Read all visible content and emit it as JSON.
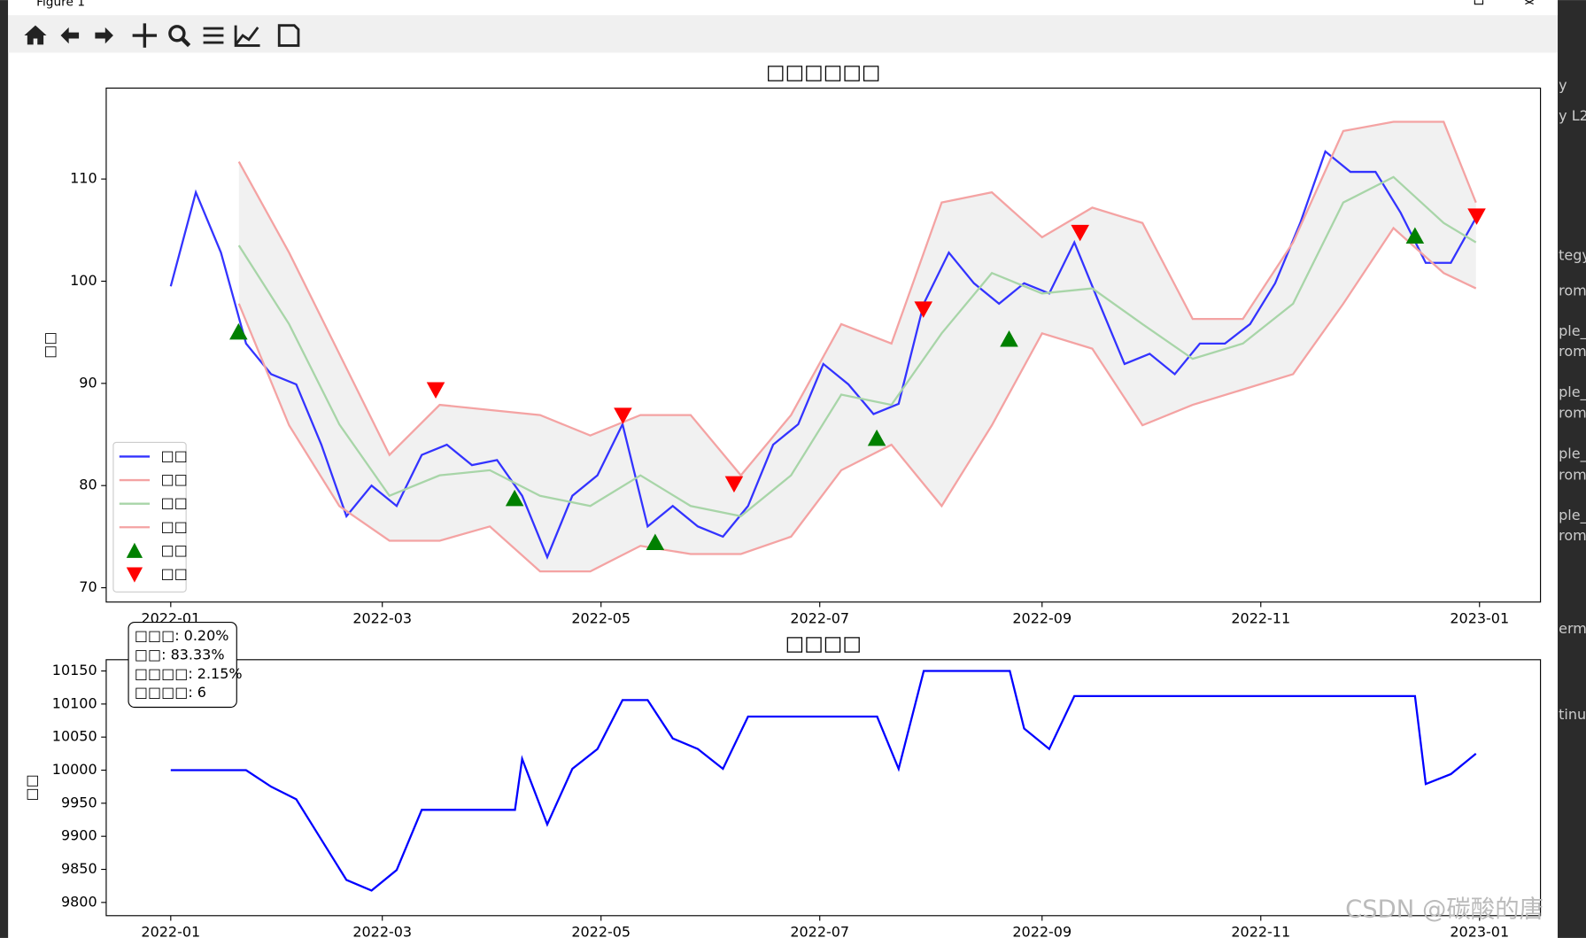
{
  "window": {
    "title": "Figure 1"
  },
  "side_text": [
    "y",
    "y L2",
    "tegy",
    "rom",
    "ple_",
    "rom",
    "ple_",
    "rom",
    "ple_",
    "rom",
    "ple_",
    "rom",
    "ermin",
    "tinue"
  ],
  "watermark": "CSDN @碳酸的唐",
  "chart_data": [
    {
      "type": "line",
      "title": "□□□□□□",
      "ylabel": "□□",
      "legend": "lower left",
      "grid": false,
      "xlim": [
        -18,
        382
      ],
      "ylim": [
        68.6,
        118.9
      ],
      "xticks": [
        {
          "value": 0,
          "label": "2022-01"
        },
        {
          "value": 59,
          "label": "2022-03"
        },
        {
          "value": 120,
          "label": "2022-05"
        },
        {
          "value": 181,
          "label": "2022-07"
        },
        {
          "value": 243,
          "label": "2022-09"
        },
        {
          "value": 304,
          "label": "2022-11"
        },
        {
          "value": 365,
          "label": "2023-01"
        }
      ],
      "yticks": [
        70,
        80,
        90,
        100,
        110
      ],
      "series": [
        {
          "name": "□□",
          "color": "#3333ff",
          "x": [
            0,
            7,
            14,
            21,
            28,
            35,
            42,
            49,
            56,
            63,
            70,
            77,
            84,
            91,
            98,
            105,
            112,
            119,
            126,
            133,
            140,
            147,
            154,
            161,
            168,
            175,
            182,
            189,
            196,
            203,
            210,
            217,
            224,
            231,
            238,
            245,
            252,
            259,
            266,
            273,
            280,
            287,
            294,
            301,
            308,
            315,
            322,
            329,
            336,
            343,
            350,
            357,
            364
          ],
          "values": [
            99.5,
            108.7,
            102.8,
            93.9,
            90.9,
            89.9,
            84,
            77,
            80,
            78,
            83,
            84,
            82,
            82.5,
            79,
            73,
            79,
            81,
            86,
            76,
            78,
            76,
            75,
            78,
            84,
            86,
            91.9,
            89.9,
            87,
            88,
            97.8,
            102.8,
            99.8,
            97.8,
            99.8,
            98.8,
            103.8,
            97.8,
            91.9,
            92.9,
            90.9,
            93.9,
            93.9,
            95.8,
            99.8,
            105.7,
            112.7,
            110.7,
            110.7,
            106.7,
            101.8,
            101.8,
            106.2
          ]
        },
        {
          "name": "□□",
          "color": "#f4a3a3",
          "x": [
            19,
            33,
            47,
            61,
            75,
            89,
            103,
            117,
            131,
            145,
            159,
            173,
            187,
            201,
            215,
            229,
            243,
            257,
            271,
            285,
            299,
            313,
            327,
            341,
            355,
            364
          ],
          "values": [
            111.7,
            102.8,
            92.9,
            83,
            87.9,
            87.4,
            86.9,
            84.9,
            86.9,
            86.9,
            81,
            86.9,
            95.8,
            93.9,
            107.7,
            108.7,
            104.3,
            107.2,
            105.7,
            96.3,
            96.3,
            103.8,
            114.7,
            115.6,
            115.6,
            107.7
          ]
        },
        {
          "name": "□□",
          "color": "#a8d5a8",
          "x": [
            19,
            33,
            47,
            61,
            75,
            89,
            103,
            117,
            131,
            145,
            159,
            173,
            187,
            201,
            215,
            229,
            243,
            257,
            271,
            285,
            299,
            313,
            327,
            341,
            355,
            364
          ],
          "values": [
            103.5,
            95.8,
            86,
            79,
            81,
            81.5,
            79,
            78,
            81,
            78,
            77,
            81,
            88.9,
            87.9,
            94.9,
            100.8,
            98.8,
            99.3,
            95.8,
            92.4,
            93.9,
            97.8,
            107.7,
            110.2,
            105.7,
            103.8
          ]
        },
        {
          "name": "□□",
          "color": "#f4a3a3",
          "x": [
            19,
            33,
            47,
            61,
            75,
            89,
            103,
            117,
            131,
            145,
            159,
            173,
            187,
            201,
            215,
            229,
            243,
            257,
            271,
            285,
            299,
            313,
            327,
            341,
            355,
            364
          ],
          "values": [
            97.8,
            85.9,
            78,
            74.6,
            74.6,
            76,
            71.6,
            71.6,
            74.1,
            73.3,
            73.3,
            75,
            81.5,
            84,
            78,
            85.9,
            94.9,
            93.4,
            85.9,
            87.9,
            89.4,
            90.9,
            97.8,
            105.2,
            100.8,
            99.3
          ]
        },
        {
          "name": "□□",
          "type": "scatter",
          "marker": "^",
          "color": "#008000",
          "x": [
            18.9,
            95.9,
            135.1,
            196.9,
            233.8,
            347
          ],
          "values": [
            95,
            78.7,
            74.4,
            84.6,
            94.3,
            104.4
          ]
        },
        {
          "name": "□□",
          "type": "scatter",
          "marker": "v",
          "color": "#ff0000",
          "x": [
            73.9,
            126.1,
            157.1,
            209.9,
            253.6,
            364.2
          ],
          "values": [
            89.4,
            86.9,
            80.2,
            97.3,
            104.8,
            106.4
          ]
        }
      ]
    },
    {
      "type": "line",
      "title": "□□□□",
      "ylabel": "□□",
      "grid": false,
      "xlim": [
        -18,
        382
      ],
      "ylim": [
        9780,
        10167
      ],
      "xticks": [
        {
          "value": 0,
          "label": "2022-01"
        },
        {
          "value": 59,
          "label": "2022-03"
        },
        {
          "value": 120,
          "label": "2022-05"
        },
        {
          "value": 181,
          "label": "2022-07"
        },
        {
          "value": 243,
          "label": "2022-09"
        },
        {
          "value": 304,
          "label": "2022-11"
        },
        {
          "value": 365,
          "label": "2023-01"
        }
      ],
      "yticks": [
        9800,
        9850,
        9900,
        9950,
        10000,
        10050,
        10100,
        10150
      ],
      "stats": [
        "□□□: 0.20%",
        "□□: 83.33%",
        "□□□□: 2.15%",
        "□□□□: 6"
      ],
      "series": [
        {
          "color": "#0000ff",
          "x": [
            0,
            21,
            28,
            35,
            42,
            49,
            56,
            63,
            70,
            96,
            98,
            105,
            112,
            119,
            126,
            133,
            140,
            147,
            154,
            161,
            197,
            203,
            210,
            234,
            238,
            245,
            252,
            347,
            350,
            357,
            364
          ],
          "values": [
            10000,
            10000,
            9975,
            9956,
            9895,
            9834,
            9818,
            9849,
            9940,
            9940,
            10017,
            9918,
            10002,
            10032,
            10106,
            10106,
            10048,
            10032,
            10002,
            10081,
            10081,
            10002,
            10150,
            10150,
            10063,
            10032,
            10112,
            10112,
            9979,
            9994,
            10025
          ]
        }
      ]
    }
  ]
}
